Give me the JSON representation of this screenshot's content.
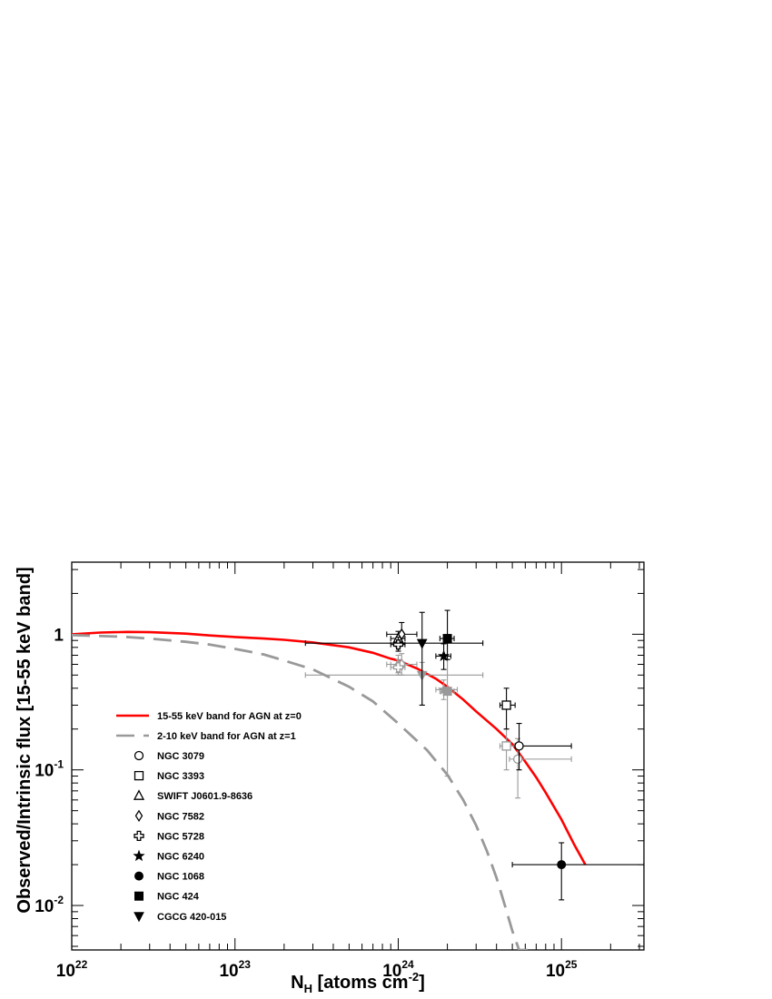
{
  "chart_data": {
    "type": "scatter",
    "xscale": "log",
    "yscale": "log",
    "xlim": [
      1e+22,
      3.2e+25
    ],
    "ylim": [
      0.0047,
      3.4
    ],
    "xlabel": {
      "main": "N",
      "sub": "H",
      "rest": " [atoms cm",
      "sup": "-2",
      "end": "]"
    },
    "ylabel": "Observed/Intrinsic flux [15-55 keV band]",
    "x_ticks": [
      {
        "value": 1e+22,
        "base": "10",
        "exp": "22"
      },
      {
        "value": 1e+23,
        "base": "10",
        "exp": "23"
      },
      {
        "value": 1e+24,
        "base": "10",
        "exp": "24"
      },
      {
        "value": 1e+25,
        "base": "10",
        "exp": "25"
      }
    ],
    "y_ticks": [
      {
        "value": 0.01,
        "base": "10",
        "exp": "-2"
      },
      {
        "value": 0.1,
        "base": "10",
        "exp": "-1"
      },
      {
        "value": 1,
        "base": "1",
        "exp": ""
      }
    ],
    "grid": false,
    "legend_position": "lower-left",
    "lines": [
      {
        "name": "15-55 keV band for AGN at z=0",
        "color": "#ff0000",
        "style": "solid",
        "x": [
          1e+22,
          1.5e+22,
          2.2e+22,
          3e+22,
          5e+22,
          7e+22,
          1e+23,
          1.5e+23,
          2e+23,
          3e+23,
          5e+23,
          7e+23,
          9e+23,
          1e+24,
          1.3e+24,
          1.7e+24,
          2e+24,
          2.5e+24,
          3e+24,
          4e+24,
          5e+24,
          6e+24,
          7e+24,
          8e+24,
          1e+25,
          1.2e+25,
          1.4e+25
        ],
        "y": [
          1.0,
          1.03,
          1.04,
          1.035,
          1.01,
          0.98,
          0.955,
          0.93,
          0.91,
          0.87,
          0.8,
          0.73,
          0.66,
          0.64,
          0.56,
          0.47,
          0.41,
          0.33,
          0.27,
          0.2,
          0.155,
          0.115,
          0.088,
          0.068,
          0.043,
          0.028,
          0.02
        ]
      },
      {
        "name": "2-10 keV band for AGN at z=1",
        "color": "#999999",
        "style": "dashed",
        "x": [
          1e+22,
          2e+22,
          3e+22,
          5e+22,
          7e+22,
          1e+23,
          1.5e+23,
          2e+23,
          3e+23,
          5e+23,
          7e+23,
          1e+24,
          1.5e+24,
          2e+24,
          2.5e+24,
          3e+24,
          3.5e+24,
          4e+24,
          4.5e+24,
          5e+24,
          5.5e+24,
          6e+24,
          6.2e+24
        ],
        "y": [
          0.985,
          0.96,
          0.93,
          0.88,
          0.84,
          0.78,
          0.71,
          0.64,
          0.55,
          0.41,
          0.32,
          0.22,
          0.14,
          0.092,
          0.06,
          0.039,
          0.025,
          0.016,
          0.01,
          0.0065,
          0.0047,
          0.0047,
          0.0047
        ]
      }
    ],
    "series": [
      {
        "name": "NGC 3079",
        "marker": "circle-open",
        "points": [
          {
            "x": 5.5e+24,
            "y": 0.15,
            "xerr": [
              5.2e+24,
              1.15e+25
            ],
            "yerr": [
              0.1,
              0.22
            ],
            "color": "#000000"
          },
          {
            "x": 5.4e+24,
            "y": 0.12,
            "xerr": [
              4.8e+24,
              1.15e+25
            ],
            "yerr": [
              0.062,
              0.17
            ],
            "color": "#999999"
          }
        ]
      },
      {
        "name": "NGC 3393",
        "marker": "square-open",
        "points": [
          {
            "x": 4.6e+24,
            "y": 0.3,
            "xerr": [
              4.2e+24,
              5.2e+24
            ],
            "yerr": [
              0.2,
              0.4
            ],
            "color": "#000000"
          },
          {
            "x": 4.6e+24,
            "y": 0.15,
            "xerr": [
              4.2e+24,
              5.2e+24
            ],
            "yerr": [
              0.1,
              0.2
            ],
            "color": "#999999"
          }
        ]
      },
      {
        "name": "SWIFT J0601.9-8636",
        "marker": "triangle-open",
        "points": [
          {
            "x": 1e+24,
            "y": 0.93,
            "xerr": [
              9e+23,
              1.1e+24
            ],
            "yerr": [
              0.8,
              1.05
            ],
            "color": "#000000"
          },
          {
            "x": 1e+24,
            "y": 0.6,
            "xerr": [
              9e+23,
              1.1e+24
            ],
            "yerr": [
              0.52,
              0.7
            ],
            "color": "#999999"
          }
        ]
      },
      {
        "name": "NGC 7582",
        "marker": "diamond-open",
        "points": [
          {
            "x": 1.05e+24,
            "y": 1.0,
            "xerr": [
              8.5e+23,
              1.3e+24
            ],
            "yerr": [
              0.85,
              1.22
            ],
            "color": "#000000"
          },
          {
            "x": 1.05e+24,
            "y": 0.6,
            "xerr": [
              8.5e+23,
              1.3e+24
            ],
            "yerr": [
              0.5,
              0.72
            ],
            "color": "#999999"
          }
        ]
      },
      {
        "name": "NGC 5728",
        "marker": "plus-open",
        "points": [
          {
            "x": 1e+24,
            "y": 0.84,
            "xerr": [
              9e+23,
              1.1e+24
            ],
            "yerr": [
              0.75,
              0.95
            ],
            "color": "#000000"
          },
          {
            "x": 1e+24,
            "y": 0.57,
            "xerr": [
              9e+23,
              1.1e+24
            ],
            "yerr": [
              0.5,
              0.65
            ],
            "color": "#999999"
          }
        ]
      },
      {
        "name": "NGC 6240",
        "marker": "star",
        "points": [
          {
            "x": 1.9e+24,
            "y": 0.69,
            "xerr": [
              1.7e+24,
              2.1e+24
            ],
            "yerr": [
              0.55,
              0.85
            ],
            "color": "#000000"
          },
          {
            "x": 1.9e+24,
            "y": 0.39,
            "xerr": [
              1.7e+24,
              2.3e+24
            ],
            "yerr": [
              0.33,
              0.46
            ],
            "color": "#999999"
          }
        ]
      },
      {
        "name": "NGC 1068",
        "marker": "circle-filled",
        "points": [
          {
            "x": 1e+25,
            "y": 0.02,
            "xerr": [
              5e+24,
              3.2e+25
            ],
            "yerr": [
              0.011,
              0.029
            ],
            "color": "#000000"
          }
        ]
      },
      {
        "name": "NGC 424",
        "marker": "square-filled",
        "points": [
          {
            "x": 2e+24,
            "y": 0.93,
            "xerr": [
              1.8e+24,
              2.2e+24
            ],
            "yerr": [
              0.65,
              1.5
            ],
            "color": "#000000"
          },
          {
            "x": 2e+24,
            "y": 0.38,
            "xerr": [
              1.8e+24,
              2.2e+24
            ],
            "yerr": [
              0.09,
              0.65
            ],
            "color": "#999999"
          }
        ]
      },
      {
        "name": "CGCG 420-015",
        "marker": "triangle-down-filled",
        "points": [
          {
            "x": 1.4e+24,
            "y": 0.86,
            "xerr": [
              2.7e+23,
              3.3e+24
            ],
            "yerr": [
              0.3,
              1.45
            ],
            "color": "#000000"
          },
          {
            "x": 1.4e+24,
            "y": 0.5,
            "xerr": [
              2.7e+23,
              3.3e+24
            ],
            "yerr": [
              0.3,
              0.62
            ],
            "color": "#999999"
          }
        ]
      }
    ]
  }
}
